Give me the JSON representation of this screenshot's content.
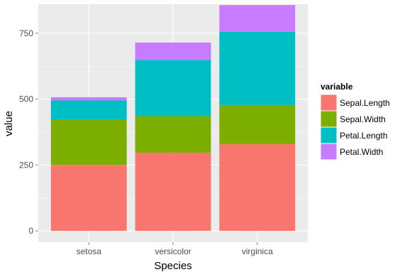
{
  "chart_data": {
    "type": "bar",
    "stacked": true,
    "title": "",
    "xlabel": "Species",
    "ylabel": "value",
    "categories": [
      "setosa",
      "versicolor",
      "virginica"
    ],
    "yticks": [
      0,
      250,
      500,
      750
    ],
    "ylim": [
      -43,
      860
    ],
    "grid": true,
    "legend_position": "right",
    "legend_title": "variable",
    "series": [
      {
        "name": "Sepal.Length",
        "values": [
          250.3,
          296.8,
          329.4
        ],
        "color": "#F8766D"
      },
      {
        "name": "Sepal.Width",
        "values": [
          171.4,
          138.5,
          148.7
        ],
        "color": "#7CAE00"
      },
      {
        "name": "Petal.Length",
        "values": [
          73.1,
          213.0,
          277.6
        ],
        "color": "#00BFC4"
      },
      {
        "name": "Petal.Width",
        "values": [
          12.3,
          66.3,
          101.3
        ],
        "color": "#C77CFF"
      }
    ],
    "panel_background": "#EBEBEB",
    "grid_color": "#FFFFFF"
  }
}
